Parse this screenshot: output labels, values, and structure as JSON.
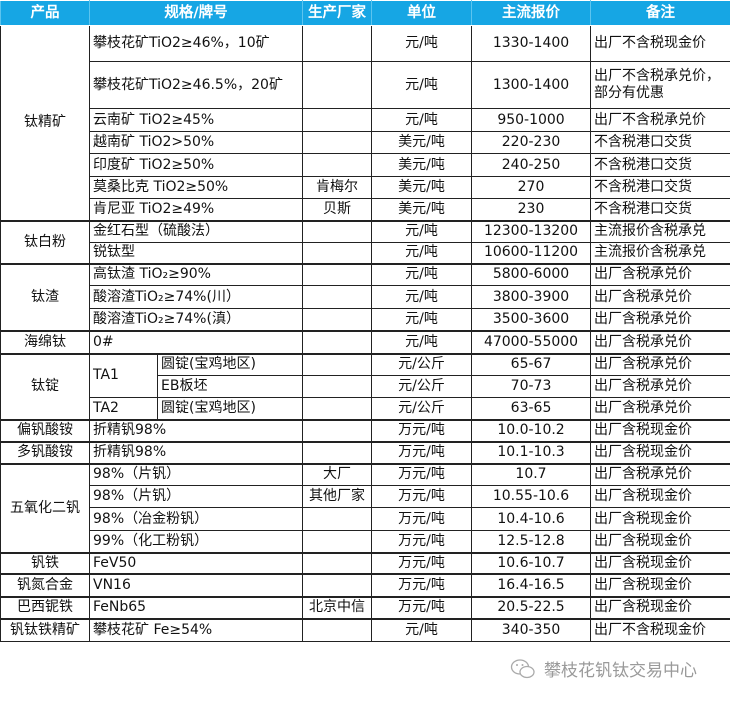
{
  "header": [
    "产品",
    "规格/牌号",
    "生产厂家",
    "单位",
    "主流报价",
    "备注"
  ],
  "groups": [
    {
      "product": "钛精矿",
      "rows": [
        {
          "spec": "攀枝花矿TiO2≥46%，10矿",
          "maker": "",
          "unit": "元/吨",
          "price": "1330-1400",
          "note": "出厂不含税现金价"
        },
        {
          "spec": "攀枝花矿TiO2≥46.5%，20矿",
          "maker": "",
          "unit": "元/吨",
          "price": "1300-1400",
          "note": "出厂不含税承兑价，部分有优惠"
        },
        {
          "spec": "云南矿 TiO2≥45%",
          "maker": "",
          "unit": "元/吨",
          "price": "950-1000",
          "note": "出厂不含税承兑价"
        },
        {
          "spec": "越南矿 TiO2>50%",
          "maker": "",
          "unit": "美元/吨",
          "price": "220-230",
          "note": "不含税港口交货"
        },
        {
          "spec": "印度矿 TiO2≥50%",
          "maker": "",
          "unit": "美元/吨",
          "price": "240-250",
          "note": "不含税港口交货"
        },
        {
          "spec": "莫桑比克 TiO2≥50%",
          "maker": "肯梅尔",
          "unit": "美元/吨",
          "price": "270",
          "note": "不含税港口交货"
        },
        {
          "spec": "肯尼亚 TiO2≥49%",
          "maker": "贝斯",
          "unit": "美元/吨",
          "price": "230",
          "note": "不含税港口交货"
        }
      ]
    },
    {
      "product": "钛白粉",
      "rows": [
        {
          "spec": "金红石型（硫酸法）",
          "maker": "",
          "unit": "元/吨",
          "price": "12300-13200",
          "note": "主流报价含税承兑"
        },
        {
          "spec": "锐钛型",
          "maker": "",
          "unit": "元/吨",
          "price": "10600-11200",
          "note": "主流报价含税承兑"
        }
      ]
    },
    {
      "product": "钛渣",
      "rows": [
        {
          "spec": "高钛渣 TiO₂≥90%",
          "maker": "",
          "unit": "元/吨",
          "price": "5800-6000",
          "note": "出厂含税承兑价"
        },
        {
          "spec": "酸溶渣TiO₂≥74%(川）",
          "maker": "",
          "unit": "元/吨",
          "price": "3800-3900",
          "note": "出厂含税承兑价"
        },
        {
          "spec": "酸溶渣TiO₂≥74%(滇）",
          "maker": "",
          "unit": "元/吨",
          "price": "3500-3600",
          "note": "出厂含税承兑价"
        }
      ]
    },
    {
      "product": "海绵钛",
      "rows": [
        {
          "spec": "0#",
          "maker": "",
          "unit": "元/吨",
          "price": "47000-55000",
          "note": "出厂含税承兑价"
        }
      ]
    },
    {
      "product": "钛锭",
      "rows": [
        {
          "grade": "TA1",
          "spec": "圆锭(宝鸡地区)",
          "maker": "",
          "unit": "元/公斤",
          "price": "65-67",
          "note": "出厂含税承兑价"
        },
        {
          "grade": null,
          "spec": "EB板坯",
          "maker": "",
          "unit": "元/公斤",
          "price": "70-73",
          "note": "出厂含税承兑价"
        },
        {
          "grade": "TA2",
          "spec": "圆锭(宝鸡地区)",
          "maker": "",
          "unit": "元/公斤",
          "price": "63-65",
          "note": "出厂含税承兑价"
        }
      ]
    },
    {
      "product": "偏钒酸铵",
      "rows": [
        {
          "spec": "折精钒98%",
          "maker": "",
          "unit": "万元/吨",
          "price": "10.0-10.2",
          "note": "出厂含税现金价"
        }
      ]
    },
    {
      "product": "多钒酸铵",
      "rows": [
        {
          "spec": "折精钒98%",
          "maker": "",
          "unit": "万元/吨",
          "price": "10.1-10.3",
          "note": "出厂含税现金价"
        }
      ]
    },
    {
      "product": "五氧化二钒",
      "rows": [
        {
          "spec": "98%（片钒）",
          "maker": "大厂",
          "unit": "万元/吨",
          "price": "10.7",
          "note": "出厂含税承兑价"
        },
        {
          "spec": "98%（片钒）",
          "maker": "其他厂家",
          "unit": "万元/吨",
          "price": "10.55-10.6",
          "note": "出厂含税现金价"
        },
        {
          "spec": "98%（冶金粉钒）",
          "maker": "",
          "unit": "万元/吨",
          "price": "10.4-10.6",
          "note": "出厂含税现金价"
        },
        {
          "spec": "99%（化工粉钒）",
          "maker": "",
          "unit": "万元/吨",
          "price": "12.5-12.8",
          "note": "出厂含税现金价"
        }
      ]
    },
    {
      "product": "钒铁",
      "rows": [
        {
          "spec": "FeV50",
          "maker": "",
          "unit": "万元/吨",
          "price": "10.6-10.7",
          "note": "出厂含税现金价"
        }
      ]
    },
    {
      "product": "钒氮合金",
      "rows": [
        {
          "spec": "VN16",
          "maker": "",
          "unit": "万元/吨",
          "price": "16.4-16.5",
          "note": "出厂含税现金价"
        }
      ]
    },
    {
      "product": "巴西铌铁",
      "rows": [
        {
          "spec": "FeNb65",
          "maker": "北京中信",
          "unit": "万元/吨",
          "price": "20.5-22.5",
          "note": "出厂含税现金价"
        }
      ]
    },
    {
      "product": "钒钛铁精矿",
      "rows": [
        {
          "spec": "攀枝花矿 Fe≥54%",
          "maker": "",
          "unit": "元/吨",
          "price": "340-350",
          "note": "出厂不含税现金价"
        }
      ]
    }
  ],
  "watermark": {
    "text": "攀枝花钒钛交易中心",
    "icon": "wechat-icon"
  }
}
